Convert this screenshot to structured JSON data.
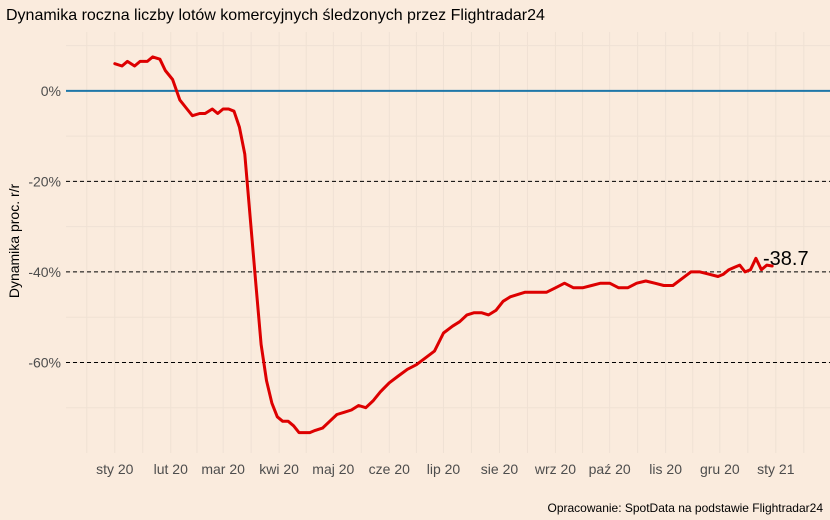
{
  "chart_data": {
    "type": "line",
    "title": "Dynamika roczna liczby lotów komercyjnych śledzonych przez Flightradar24",
    "ylabel": "Dynamika proc. r/r",
    "xlabel": "",
    "caption": "Opracowanie: SpotData na podstawie Flightradar24",
    "end_label": "-38.7",
    "x_ticks": [
      "sty 20",
      "lut 20",
      "mar 20",
      "kwi 20",
      "maj 20",
      "cze 20",
      "lip 20",
      "sie 20",
      "wrz 20",
      "paź 20",
      "lis 20",
      "gru 20",
      "sty 21"
    ],
    "y_ticks": [
      {
        "value": 0,
        "label": "0%"
      },
      {
        "value": -20,
        "label": "-20%"
      },
      {
        "value": -40,
        "label": "-40%"
      },
      {
        "value": -60,
        "label": "-60%"
      }
    ],
    "ylim": [
      -80,
      13
    ],
    "xlim_days": [
      -27,
      396
    ],
    "grid": true,
    "reference_line": {
      "value": 0,
      "color": "#1f77a8"
    },
    "dashed_lines": [
      -20,
      -40,
      -60
    ],
    "series": [
      {
        "color": "#dd0000",
        "x": [
          "2020-01-01",
          "2020-01-05",
          "2020-01-08",
          "2020-01-12",
          "2020-01-15",
          "2020-01-19",
          "2020-01-22",
          "2020-01-26",
          "2020-01-29",
          "2020-02-02",
          "2020-02-06",
          "2020-02-10",
          "2020-02-13",
          "2020-02-17",
          "2020-02-20",
          "2020-02-24",
          "2020-02-27",
          "2020-03-01",
          "2020-03-04",
          "2020-03-07",
          "2020-03-10",
          "2020-03-13",
          "2020-03-16",
          "2020-03-19",
          "2020-03-22",
          "2020-03-25",
          "2020-03-28",
          "2020-03-31",
          "2020-04-03",
          "2020-04-06",
          "2020-04-09",
          "2020-04-12",
          "2020-04-15",
          "2020-04-18",
          "2020-04-21",
          "2020-04-25",
          "2020-04-29",
          "2020-05-03",
          "2020-05-07",
          "2020-05-11",
          "2020-05-15",
          "2020-05-19",
          "2020-05-23",
          "2020-05-27",
          "2020-06-01",
          "2020-06-06",
          "2020-06-11",
          "2020-06-16",
          "2020-06-21",
          "2020-06-26",
          "2020-07-01",
          "2020-07-06",
          "2020-07-10",
          "2020-07-14",
          "2020-07-18",
          "2020-07-22",
          "2020-07-26",
          "2020-07-30",
          "2020-08-03",
          "2020-08-07",
          "2020-08-11",
          "2020-08-15",
          "2020-08-19",
          "2020-08-23",
          "2020-08-27",
          "2020-09-01",
          "2020-09-06",
          "2020-09-11",
          "2020-09-16",
          "2020-09-21",
          "2020-09-26",
          "2020-10-01",
          "2020-10-06",
          "2020-10-11",
          "2020-10-16",
          "2020-10-21",
          "2020-10-26",
          "2020-10-31",
          "2020-11-05",
          "2020-11-10",
          "2020-11-15",
          "2020-11-20",
          "2020-11-25",
          "2020-11-30",
          "2020-12-03",
          "2020-12-06",
          "2020-12-09",
          "2020-12-12",
          "2020-12-15",
          "2020-12-18",
          "2020-12-21",
          "2020-12-24",
          "2020-12-27",
          "2020-12-30"
        ],
        "values": [
          6.0,
          5.5,
          6.5,
          5.5,
          6.5,
          6.5,
          7.5,
          7.0,
          4.5,
          2.5,
          -2.0,
          -4.0,
          -5.5,
          -5.0,
          -5.0,
          -4.0,
          -5.0,
          -4.0,
          -4.0,
          -4.5,
          -8.0,
          -14.0,
          -28.0,
          -42.0,
          -56.0,
          -64.0,
          -69.0,
          -72.0,
          -73.0,
          -73.0,
          -74.0,
          -75.5,
          -75.5,
          -75.5,
          -75.0,
          -74.5,
          -73.0,
          -71.5,
          -71.0,
          -70.5,
          -69.5,
          -70.0,
          -68.5,
          -66.5,
          -64.5,
          -63.0,
          -61.5,
          -60.5,
          -59.0,
          -57.5,
          -53.5,
          -52.0,
          -51.0,
          -49.5,
          -49.0,
          -49.0,
          -49.5,
          -48.5,
          -46.5,
          -45.5,
          -45.0,
          -44.5,
          -44.5,
          -44.5,
          -44.5,
          -43.5,
          -42.5,
          -43.5,
          -43.5,
          -43.0,
          -42.5,
          -42.5,
          -43.5,
          -43.5,
          -42.5,
          -42.0,
          -42.5,
          -43.0,
          -43.0,
          -41.5,
          -40.0,
          -40.0,
          -40.5,
          -41.0,
          -40.5,
          -39.5,
          -39.0,
          -38.5,
          -40.0,
          -39.5,
          -37.0,
          -39.5,
          -38.5,
          -38.7
        ]
      }
    ]
  }
}
